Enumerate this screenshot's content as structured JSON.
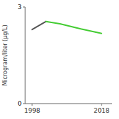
{
  "chart_data": {
    "type": "line",
    "x": [
      1998,
      2002,
      2006,
      2012,
      2018
    ],
    "series": [
      {
        "color": "#555555",
        "values": [
          2.3,
          2.55,
          null,
          null,
          null
        ]
      },
      {
        "color": "#44cc33",
        "values": [
          null,
          2.55,
          2.48,
          2.32,
          2.18
        ]
      }
    ],
    "ylabel": "Microgram/liter (µg/L)",
    "xlim": [
      1996,
      2021
    ],
    "ylim": [
      0,
      3
    ],
    "xticks": [
      1998,
      2018
    ],
    "yticks": [
      0,
      3
    ],
    "grid": false
  }
}
